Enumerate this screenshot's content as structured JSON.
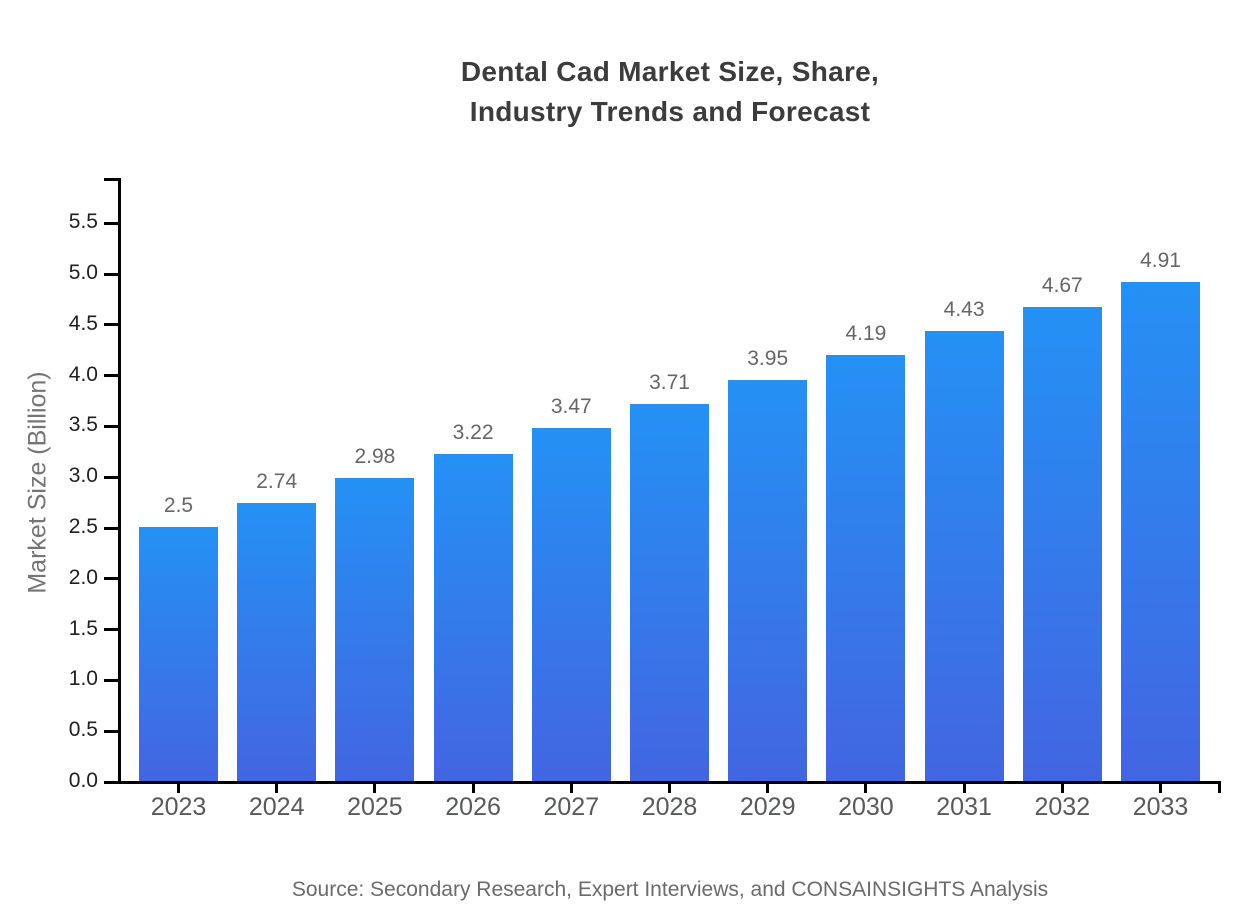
{
  "chart": {
    "title_line1": "Dental Cad Market Size, Share,",
    "title_line2": "Industry Trends and Forecast",
    "ylabel": "Market Size (Billion)",
    "source": "Source: Secondary Research, Expert Interviews, and CONSAINSIGHTS Analysis"
  },
  "chart_data": {
    "type": "bar",
    "title": "Dental Cad Market Size, Share, Industry Trends and Forecast",
    "categories": [
      "2023",
      "2024",
      "2025",
      "2026",
      "2027",
      "2028",
      "2029",
      "2030",
      "2031",
      "2032",
      "2033"
    ],
    "values": [
      2.5,
      2.74,
      2.98,
      3.22,
      3.47,
      3.71,
      3.95,
      4.19,
      4.43,
      4.67,
      4.91
    ],
    "value_labels": [
      "2.5",
      "2.74",
      "2.98",
      "3.22",
      "3.47",
      "3.71",
      "3.95",
      "4.19",
      "4.43",
      "4.67",
      "4.91"
    ],
    "xlabel": "",
    "ylabel": "Market Size (Billion)",
    "ylim": [
      0,
      5.9
    ],
    "yticks": [
      0.0,
      0.5,
      1.0,
      1.5,
      2.0,
      2.5,
      3.0,
      3.5,
      4.0,
      4.5,
      5.0,
      5.5
    ],
    "ytick_labels": [
      "0.0",
      "0.5",
      "1.0",
      "1.5",
      "2.0",
      "2.5",
      "3.0",
      "3.5",
      "4.0",
      "4.5",
      "5.0",
      "5.5"
    ],
    "grid": false,
    "legend": false,
    "colors": {
      "bar_gradient_top": "#2491F5",
      "bar_gradient_bottom": "#4365E2",
      "axis": "#000000",
      "title_text": "#3c3c3c",
      "tick_text": "#1f1f1f",
      "value_label_text": "#666666",
      "source_text": "#6b6b6b"
    }
  }
}
